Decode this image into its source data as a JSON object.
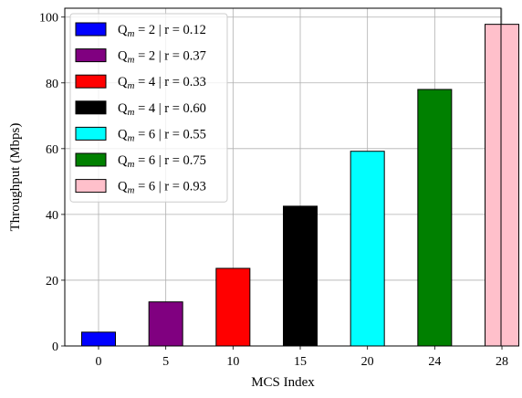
{
  "chart_data": {
    "type": "bar",
    "categories": [
      "0",
      "5",
      "10",
      "15",
      "20",
      "24",
      "28"
    ],
    "values": [
      4.2,
      13.4,
      23.6,
      42.5,
      59.2,
      78.0,
      97.8
    ],
    "colors": [
      "#0000ff",
      "#800080",
      "#ff0000",
      "#000000",
      "#00ffff",
      "#008000",
      "#ffc0cb"
    ],
    "xlabel": "MCS Index",
    "ylabel": "Throughput (Mbps)",
    "ylim": [
      0,
      102.7
    ],
    "yticks": [
      "0",
      "20",
      "40",
      "60",
      "80",
      "100"
    ],
    "grid": true,
    "legend_position": "upper-left",
    "legend": [
      {
        "q": "2",
        "r": "0.12",
        "color": "#0000ff"
      },
      {
        "q": "2",
        "r": "0.37",
        "color": "#800080"
      },
      {
        "q": "4",
        "r": "0.33",
        "color": "#ff0000"
      },
      {
        "q": "4",
        "r": "0.60",
        "color": "#000000"
      },
      {
        "q": "6",
        "r": "0.55",
        "color": "#00ffff"
      },
      {
        "q": "6",
        "r": "0.75",
        "color": "#008000"
      },
      {
        "q": "6",
        "r": "0.93",
        "color": "#ffc0cb"
      }
    ],
    "legend_prefix": "Q",
    "legend_subscript": "m",
    "legend_separator_q": " = ",
    "legend_separator_r": " | r = "
  }
}
